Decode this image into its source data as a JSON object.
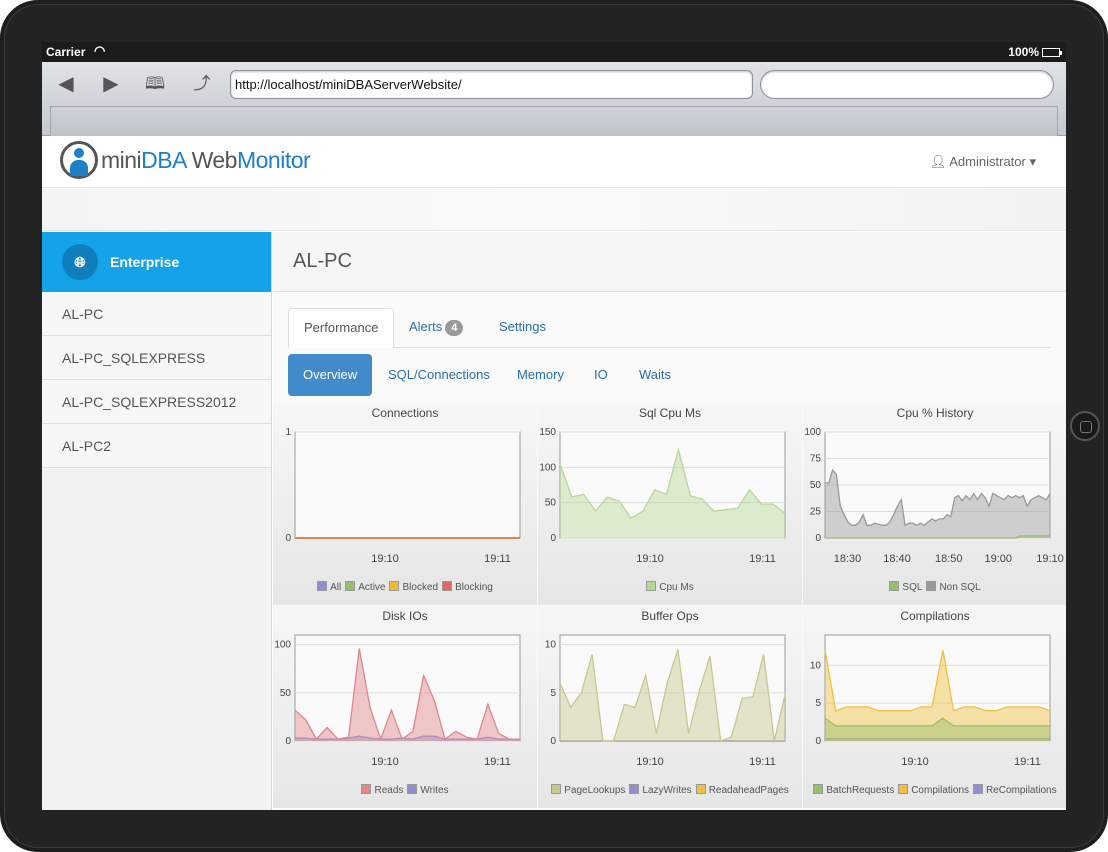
{
  "status": {
    "carrier": "Carrier",
    "battery": "100%"
  },
  "browser": {
    "url": "http://localhost/miniDBAServerWebsite/",
    "search_placeholder": ""
  },
  "app": {
    "logo_part1": "mini",
    "logo_part2": "DBA",
    "logo_part3": " Web",
    "logo_part4": "Monitor",
    "user": "Administrator"
  },
  "sidebar": {
    "header": "Enterprise",
    "items": [
      {
        "label": "AL-PC"
      },
      {
        "label": "AL-PC_SQLEXPRESS"
      },
      {
        "label": "AL-PC_SQLEXPRESS2012"
      },
      {
        "label": "AL-PC2"
      }
    ]
  },
  "main": {
    "title": "AL-PC",
    "tabs": [
      {
        "label": "Performance"
      },
      {
        "label": "Alerts",
        "badge": "4"
      },
      {
        "label": "Settings"
      }
    ],
    "subtabs": [
      {
        "label": "Overview"
      },
      {
        "label": "SQL/Connections"
      },
      {
        "label": "Memory"
      },
      {
        "label": "IO"
      },
      {
        "label": "Waits"
      }
    ]
  },
  "colors": {
    "accent": "#14a2e8",
    "pill": "#428bca",
    "link": "#2a6ea8"
  },
  "chart_data": [
    {
      "type": "line",
      "title": "Connections",
      "ylim": [
        0,
        1
      ],
      "yticks": [
        0,
        1
      ],
      "xticks": [
        "19:10",
        "19:11"
      ],
      "xtick_pos": [
        0.4,
        0.9
      ],
      "series": [
        {
          "name": "All",
          "color": "#8f8fd0",
          "values": [
            0,
            0,
            0,
            0,
            0,
            0,
            0,
            0,
            0,
            0,
            0,
            0,
            0,
            0,
            0,
            0,
            0,
            0,
            0,
            0
          ]
        },
        {
          "name": "Active",
          "color": "#99bf6e",
          "values": [
            0,
            0,
            0,
            0,
            0,
            0,
            0,
            0,
            0,
            0,
            0,
            0,
            0,
            0,
            0,
            0,
            0,
            0,
            0,
            0
          ]
        },
        {
          "name": "Blocked",
          "color": "#f0b93b",
          "values": [
            0,
            0,
            0,
            0,
            0,
            0,
            0,
            0,
            0,
            0,
            0,
            0,
            0,
            0,
            0,
            0,
            0,
            0,
            0,
            0
          ]
        },
        {
          "name": "Blocking",
          "color": "#e0676b",
          "values": [
            0,
            0,
            0,
            0,
            0,
            0,
            0,
            0,
            0,
            0,
            0,
            0,
            0,
            0,
            0,
            0,
            0,
            0,
            0,
            0
          ]
        }
      ]
    },
    {
      "type": "area",
      "title": "Sql Cpu Ms",
      "ylim": [
        0,
        150
      ],
      "yticks": [
        0,
        50,
        100,
        150
      ],
      "xticks": [
        "19:10",
        "19:11"
      ],
      "xtick_pos": [
        0.4,
        0.9
      ],
      "series": [
        {
          "name": "Cpu Ms",
          "color": "#b8d89a",
          "values": [
            105,
            58,
            62,
            38,
            58,
            52,
            28,
            38,
            68,
            62,
            125,
            60,
            55,
            38,
            40,
            42,
            68,
            48,
            48,
            35
          ]
        }
      ]
    },
    {
      "type": "area",
      "title": "Cpu % History",
      "ylim": [
        0,
        100
      ],
      "yticks": [
        0,
        25,
        50,
        75,
        100
      ],
      "xticks": [
        "18:30",
        "18:40",
        "18:50",
        "19:00",
        "19:10"
      ],
      "xtick_pos": [
        0.1,
        0.32,
        0.55,
        0.77,
        1.0
      ],
      "series": [
        {
          "name": "SQL",
          "color": "#99bf6e",
          "values": [
            0,
            0,
            0,
            0,
            0,
            0,
            0,
            0,
            0,
            0,
            0,
            0,
            0,
            0,
            0,
            0,
            0,
            0,
            0,
            0,
            0,
            0,
            0,
            0,
            0,
            0,
            0,
            0,
            0,
            0,
            0,
            0,
            0,
            0,
            0,
            0,
            0,
            0,
            0,
            0,
            0,
            0,
            0,
            0,
            0,
            0,
            0,
            0,
            0,
            0,
            0,
            2,
            2,
            2,
            2,
            2,
            2,
            2,
            2,
            2
          ]
        },
        {
          "name": "Non SQL",
          "color": "#999999",
          "values": [
            52,
            52,
            64,
            60,
            30,
            22,
            15,
            12,
            12,
            15,
            22,
            12,
            12,
            14,
            13,
            12,
            12,
            15,
            22,
            30,
            36,
            12,
            14,
            14,
            12,
            14,
            12,
            15,
            18,
            16,
            18,
            18,
            22,
            20,
            38,
            40,
            35,
            40,
            36,
            42,
            36,
            42,
            38,
            30,
            42,
            40,
            38,
            36,
            40,
            38,
            40,
            38,
            40,
            30,
            36,
            38,
            40,
            38,
            36,
            42
          ]
        }
      ]
    },
    {
      "type": "area",
      "title": "Disk IOs",
      "ylim": [
        0,
        110
      ],
      "yticks": [
        0,
        50,
        100
      ],
      "xticks": [
        "19:10",
        "19:11"
      ],
      "xtick_pos": [
        0.4,
        0.9
      ],
      "series": [
        {
          "name": "Reads",
          "color": "#e0878b",
          "values": [
            32,
            22,
            2,
            14,
            2,
            4,
            96,
            35,
            2,
            32,
            2,
            10,
            68,
            42,
            2,
            10,
            4,
            2,
            38,
            8,
            2,
            2
          ]
        },
        {
          "name": "Writes",
          "color": "#8f8fd0",
          "values": [
            3,
            3,
            2,
            2,
            2,
            3,
            5,
            3,
            2,
            2,
            3,
            2,
            5,
            5,
            2,
            2,
            2,
            2,
            4,
            2,
            2,
            2
          ]
        }
      ]
    },
    {
      "type": "area",
      "title": "Buffer Ops",
      "ylim": [
        0,
        11
      ],
      "yticks": [
        0,
        5,
        10
      ],
      "xticks": [
        "19:10",
        "19:11"
      ],
      "xtick_pos": [
        0.4,
        0.9
      ],
      "series": [
        {
          "name": "PageLookups",
          "color": "#c8c890",
          "values": [
            6,
            3.5,
            5,
            9,
            0,
            0,
            3.8,
            3.5,
            6.8,
            0.8,
            6,
            9.5,
            0.8,
            5.2,
            8.8,
            0,
            0.4,
            4.4,
            4.6,
            9,
            0,
            4.8
          ]
        },
        {
          "name": "LazyWrites",
          "color": "#8f8fd0",
          "values": [
            0,
            0,
            0,
            0,
            0,
            0,
            0,
            0,
            0,
            0,
            0,
            0,
            0,
            0,
            0,
            0,
            0,
            0,
            0,
            0,
            0,
            0
          ]
        },
        {
          "name": "ReadaheadPages",
          "color": "#f0c040",
          "values": [
            0,
            0,
            0,
            0,
            0,
            0,
            0,
            0,
            0,
            0,
            0,
            0,
            0,
            0,
            0,
            0,
            0,
            0,
            0,
            0,
            0,
            0
          ]
        }
      ]
    },
    {
      "type": "area",
      "title": "Compilations",
      "ylim": [
        0,
        14
      ],
      "yticks": [
        0,
        5,
        10
      ],
      "xticks": [
        "19:10",
        "19:11"
      ],
      "xtick_pos": [
        0.4,
        0.9
      ],
      "series": [
        {
          "name": "BatchRequests",
          "color": "#99bf6e",
          "values": [
            3,
            2,
            2,
            2,
            2,
            2,
            2,
            2,
            2,
            2,
            2,
            3,
            2,
            2,
            2,
            2,
            2,
            2,
            2,
            2,
            2,
            2
          ]
        },
        {
          "name": "Compilations",
          "color": "#f0c040",
          "values": [
            12,
            4,
            4.5,
            4.5,
            4.5,
            4,
            4,
            4,
            4,
            4.5,
            4.5,
            12,
            4,
            4.5,
            4.5,
            4,
            4,
            4.5,
            4.5,
            4.5,
            4.5,
            4
          ]
        },
        {
          "name": "ReCompilations",
          "color": "#8f8fd0",
          "values": [
            0.3,
            0.3,
            0.3,
            0.3,
            0.3,
            0.3,
            0.3,
            0.3,
            0.3,
            0.3,
            0.3,
            0.3,
            0.3,
            0.3,
            0.3,
            0.3,
            0.3,
            0.3,
            0.3,
            0.3,
            0.3,
            0.3
          ]
        }
      ]
    }
  ]
}
